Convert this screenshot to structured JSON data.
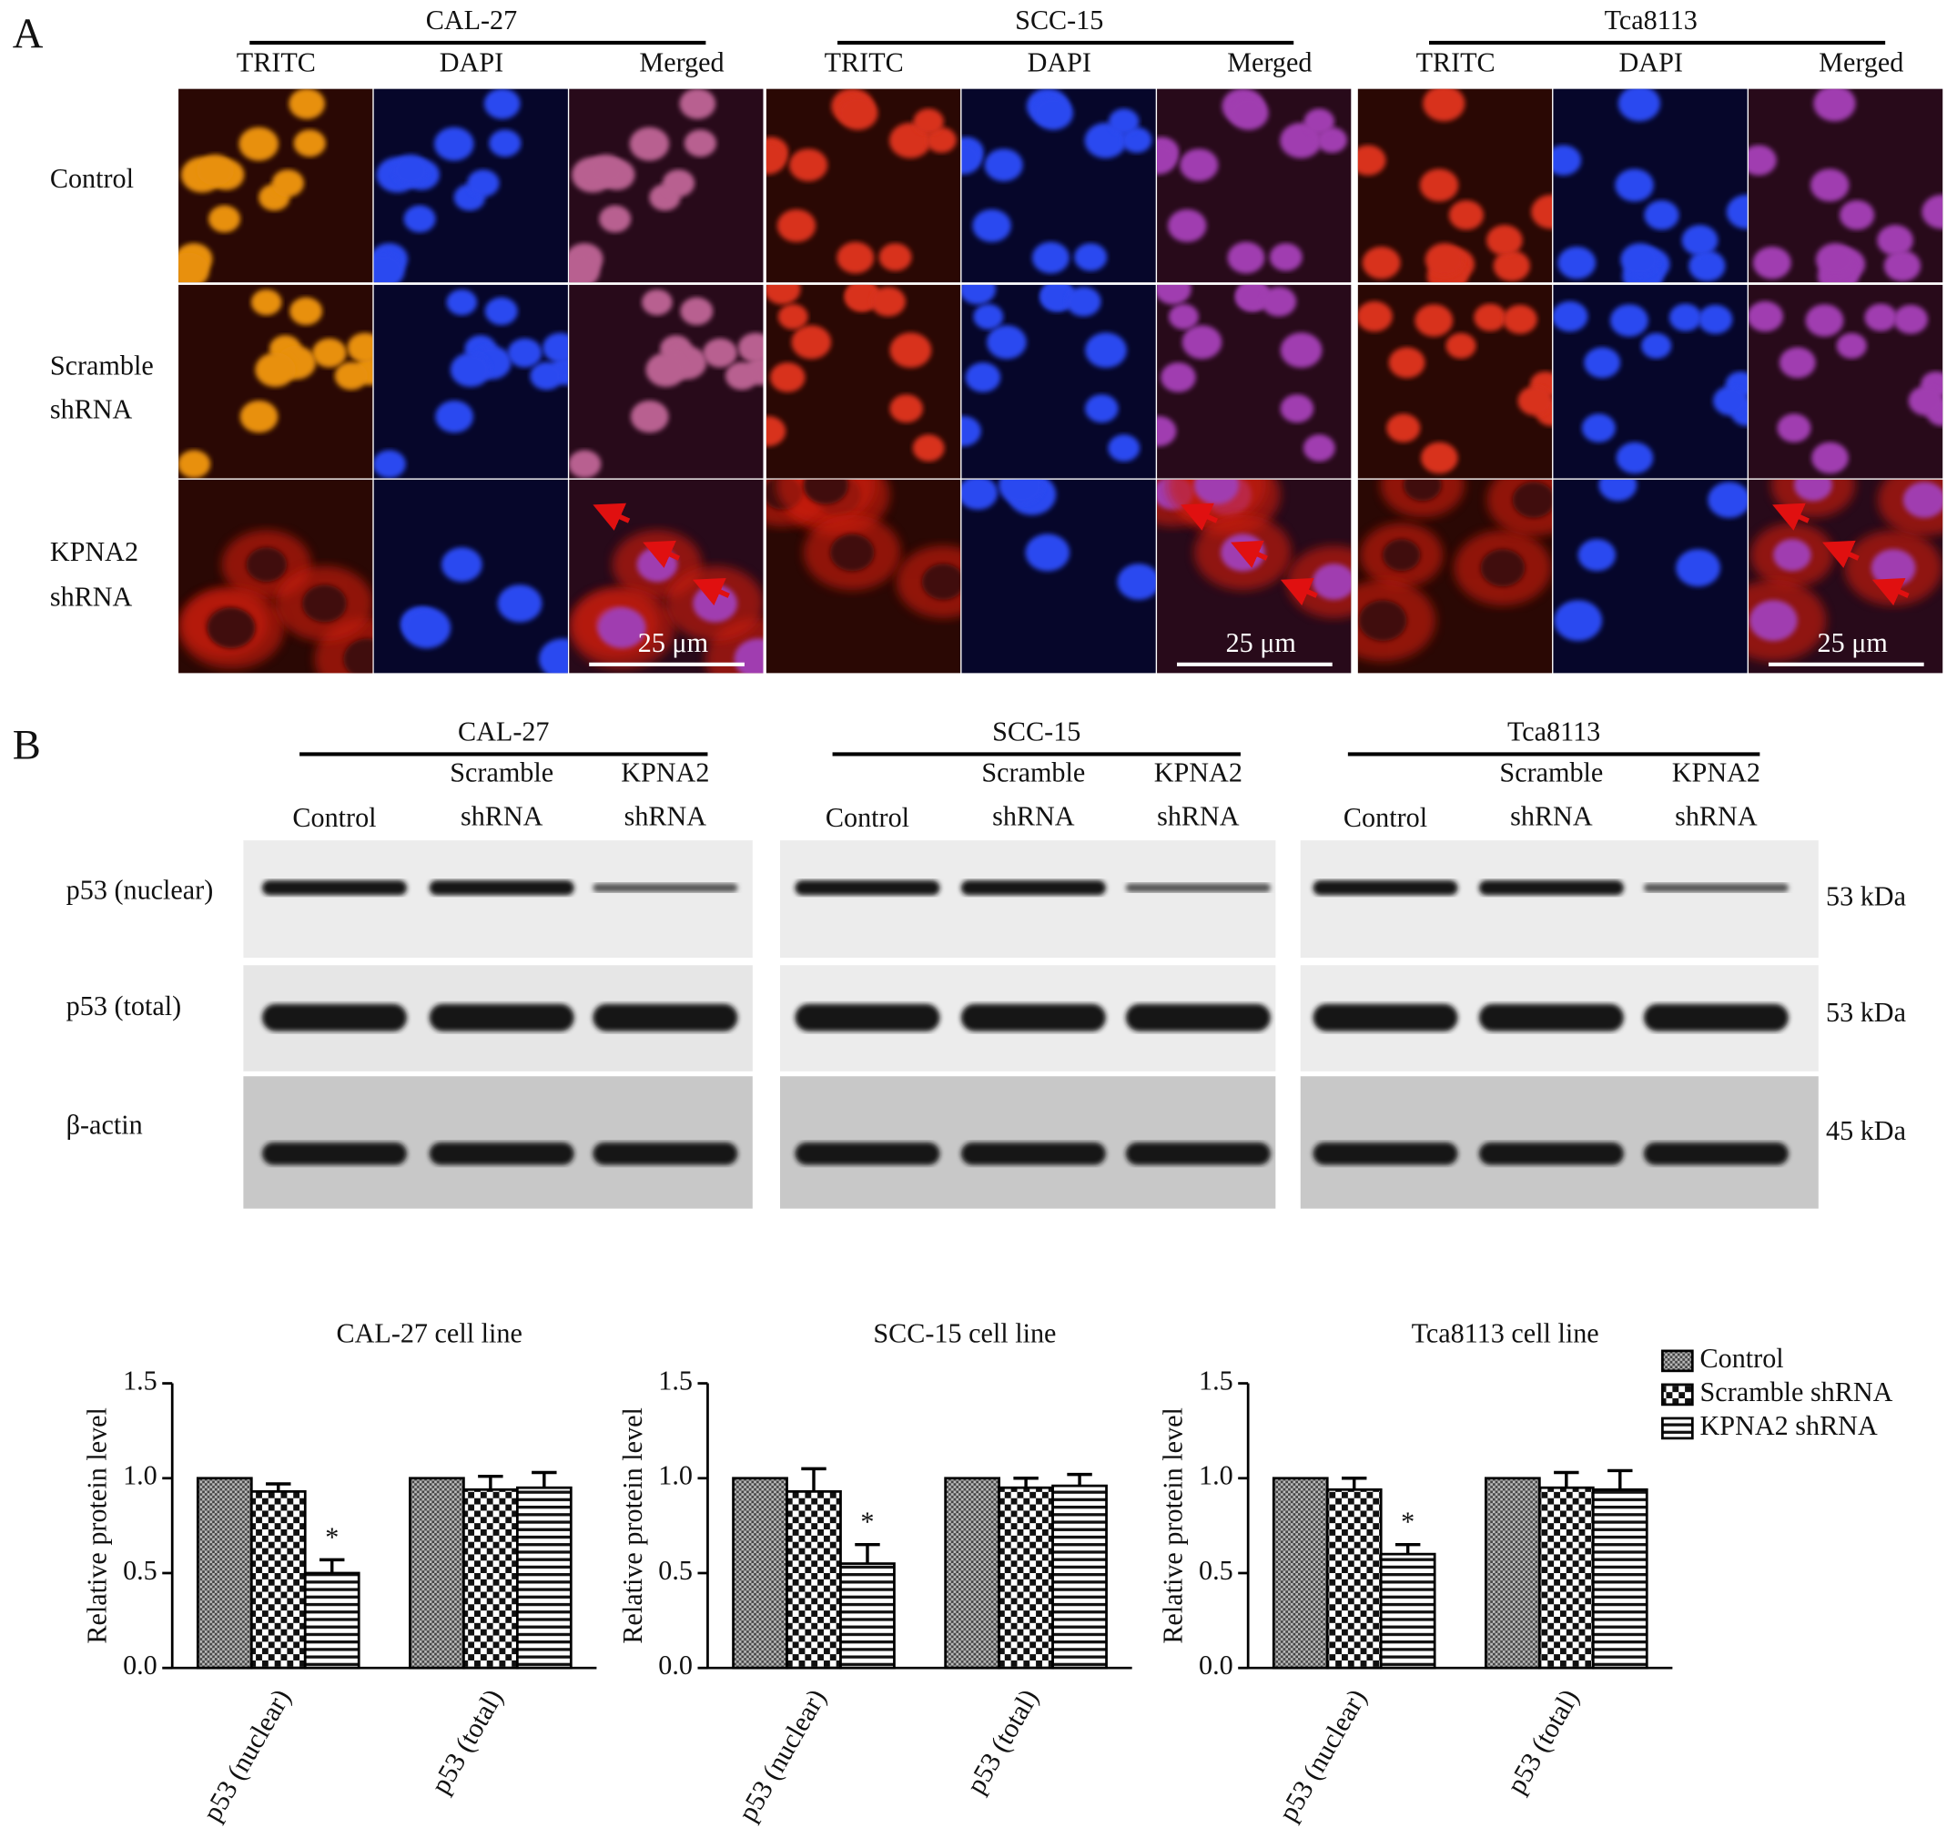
{
  "panel_a": {
    "label": "A",
    "cell_lines": [
      "CAL-27",
      "SCC-15",
      "Tca8113"
    ],
    "channels": [
      "TRITC",
      "DAPI",
      "Merged"
    ],
    "rows": [
      [
        "Control"
      ],
      [
        "Scramble",
        "shRNA"
      ],
      [
        "KPNA2",
        "shRNA"
      ]
    ],
    "scale_bar": "25 μm"
  },
  "panel_b": {
    "label": "B",
    "cell_lines": [
      "CAL-27",
      "SCC-15",
      "Tca8113"
    ],
    "lanes": [
      [
        "Control"
      ],
      [
        "Scramble",
        "shRNA"
      ],
      [
        "KPNA2",
        "shRNA"
      ]
    ],
    "blots": [
      {
        "label": "p53 (nuclear)",
        "size": "53 kDa"
      },
      {
        "label": "p53 (total)",
        "size": "53 kDa"
      },
      {
        "label": "β-actin",
        "size": "45 kDa"
      }
    ]
  },
  "chart_data": [
    {
      "type": "bar",
      "title": "CAL-27 cell line",
      "y_label": "Relative protein level",
      "categories": [
        "p53 (nuclear)",
        "p53 (total)"
      ],
      "series": [
        {
          "name": "Control",
          "pattern": "dots",
          "values": [
            1.0,
            1.0
          ]
        },
        {
          "name": "Scramble shRNA",
          "pattern": "checker",
          "values": [
            0.93,
            0.94
          ],
          "errors": [
            0.04,
            0.07
          ]
        },
        {
          "name": "KPNA2 shRNA",
          "pattern": "stripes",
          "values": [
            0.5,
            0.95
          ],
          "errors": [
            0.07,
            0.08
          ],
          "marks": [
            "*",
            null
          ]
        }
      ],
      "ylim": [
        0,
        1.5
      ],
      "yticks": [
        {
          "value": 0,
          "label": "0.0"
        },
        {
          "value": 0.5,
          "label": "0.5"
        },
        {
          "value": 1,
          "label": "1.0"
        },
        {
          "value": 1.5,
          "label": "1.5"
        }
      ],
      "legend": false
    },
    {
      "type": "bar",
      "title": "SCC-15 cell line",
      "y_label": "Relative protein level",
      "categories": [
        "p53 (nuclear)",
        "p53 (total)"
      ],
      "series": [
        {
          "name": "Control",
          "pattern": "dots",
          "values": [
            1.0,
            1.0
          ]
        },
        {
          "name": "Scramble shRNA",
          "pattern": "checker",
          "values": [
            0.93,
            0.95
          ],
          "errors": [
            0.12,
            0.05
          ]
        },
        {
          "name": "KPNA2 shRNA",
          "pattern": "stripes",
          "values": [
            0.55,
            0.96
          ],
          "errors": [
            0.1,
            0.06
          ],
          "marks": [
            "*",
            null
          ]
        }
      ],
      "ylim": [
        0,
        1.5
      ],
      "yticks": [
        {
          "value": 0,
          "label": "0.0"
        },
        {
          "value": 0.5,
          "label": "0.5"
        },
        {
          "value": 1,
          "label": "1.0"
        },
        {
          "value": 1.5,
          "label": "1.5"
        }
      ],
      "legend": false
    },
    {
      "type": "bar",
      "title": "Tca8113 cell line",
      "y_label": "Relative protein level",
      "categories": [
        "p53 (nuclear)",
        "p53 (total)"
      ],
      "series": [
        {
          "name": "Control",
          "pattern": "dots",
          "values": [
            1.0,
            1.0
          ]
        },
        {
          "name": "Scramble shRNA",
          "pattern": "checker",
          "values": [
            0.94,
            0.95
          ],
          "errors": [
            0.06,
            0.08
          ]
        },
        {
          "name": "KPNA2 shRNA",
          "pattern": "stripes",
          "values": [
            0.6,
            0.94
          ],
          "errors": [
            0.05,
            0.1
          ],
          "marks": [
            "*",
            null
          ]
        }
      ],
      "ylim": [
        0,
        1.5
      ],
      "yticks": [
        {
          "value": 0,
          "label": "0.0"
        },
        {
          "value": 0.5,
          "label": "0.5"
        },
        {
          "value": 1,
          "label": "1.0"
        },
        {
          "value": 1.5,
          "label": "1.5"
        }
      ],
      "legend": "right"
    }
  ]
}
